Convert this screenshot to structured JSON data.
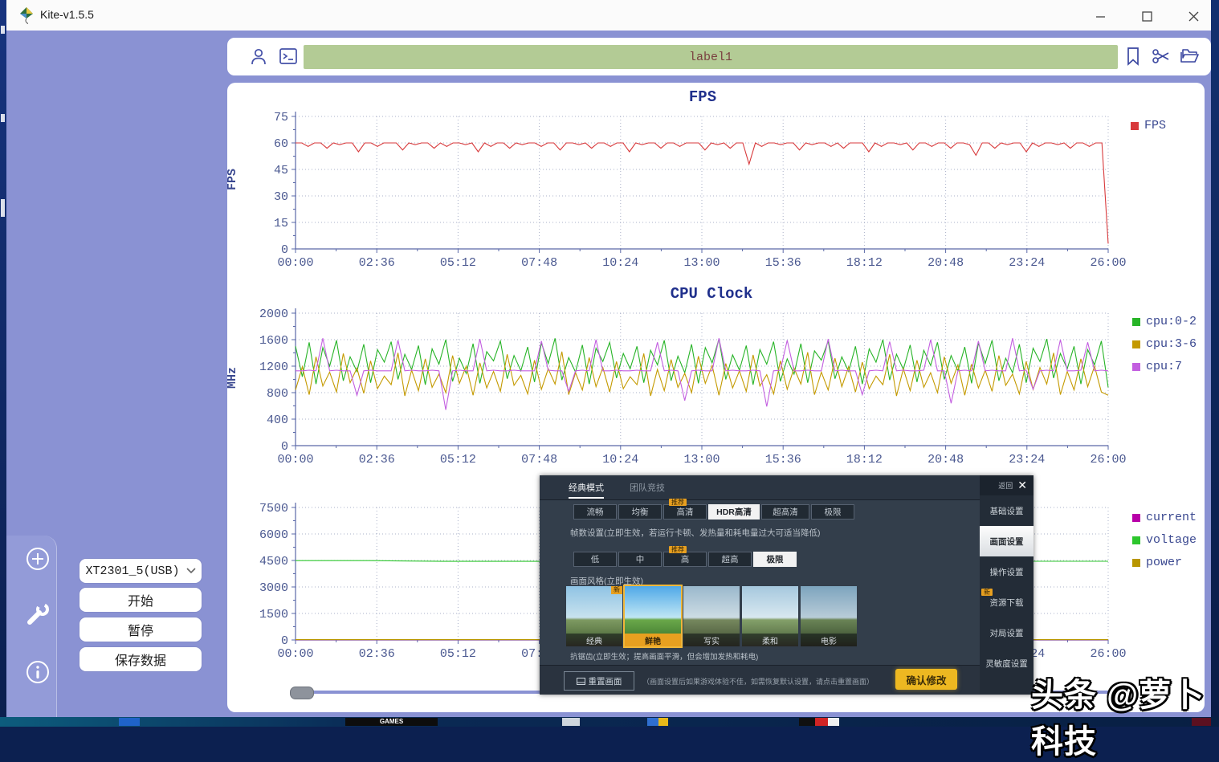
{
  "window": {
    "title": "Kite-v1.5.5"
  },
  "toolbar": {
    "label_value": "label1"
  },
  "sidebar": {
    "device": "XT2301_5(USB)",
    "start_label": "开始",
    "pause_label": "暂停",
    "save_label": "保存数据"
  },
  "chart_data": [
    {
      "type": "line",
      "title": "FPS",
      "ylabel": "FPS",
      "ylim": [
        0,
        75
      ],
      "yticks": [
        0,
        15,
        30,
        45,
        60,
        75
      ],
      "xticks": [
        "00:00",
        "02:36",
        "05:12",
        "07:48",
        "10:24",
        "13:00",
        "15:36",
        "18:12",
        "20:48",
        "23:24",
        "26:00"
      ],
      "grid": true,
      "legend_position": "right",
      "series": [
        {
          "name": "FPS",
          "color": "#d83a3c",
          "values": [
            60,
            60,
            58,
            60,
            60,
            57,
            60,
            59,
            60,
            60,
            55,
            60,
            60,
            58,
            60,
            60,
            60,
            56,
            60,
            59,
            60,
            60,
            57,
            60,
            58,
            60,
            60,
            59,
            60,
            55,
            60,
            58,
            60,
            60,
            57,
            60,
            59,
            60,
            60,
            58,
            60,
            60,
            56,
            60,
            60,
            59,
            60,
            57,
            60,
            60,
            58,
            60,
            60,
            55,
            60,
            59,
            60,
            60,
            57,
            60,
            60,
            58,
            60,
            60,
            60,
            56,
            60,
            59,
            60,
            57,
            60,
            60,
            48,
            60,
            58,
            60,
            60,
            59,
            60,
            60,
            56,
            60,
            59,
            60,
            60,
            58,
            60,
            57,
            60,
            60,
            60,
            55,
            60,
            58,
            60,
            60,
            59,
            60,
            56,
            60,
            60,
            58,
            60,
            60,
            57,
            60,
            60,
            59,
            53,
            60,
            60,
            57,
            60,
            59,
            60,
            60,
            55,
            60,
            58,
            60,
            60,
            59,
            60,
            57,
            60,
            60,
            58,
            60,
            60,
            3
          ]
        }
      ]
    },
    {
      "type": "line",
      "title": "CPU Clock",
      "ylabel": "MHz",
      "ylim": [
        0,
        2000
      ],
      "yticks": [
        0,
        400,
        800,
        1200,
        1600,
        2000
      ],
      "xticks": [
        "00:00",
        "02:36",
        "05:12",
        "07:48",
        "10:24",
        "13:00",
        "15:36",
        "18:12",
        "20:48",
        "23:24",
        "26:00"
      ],
      "grid": true,
      "legend_position": "right",
      "series": [
        {
          "name": "cpu:0-2",
          "color": "#27b427",
          "values": [
            1500,
            1040,
            1560,
            930,
            1480,
            1200,
            1590,
            980,
            1340,
            1120,
            1530,
            950,
            1450,
            1260,
            1570,
            1000,
            1380,
            1150,
            1510,
            920,
            1460,
            1230,
            1600,
            970,
            1320,
            1090,
            1540,
            940,
            1420,
            1280,
            1580,
            1010,
            1360,
            1130,
            1490,
            960,
            1550,
            1240,
            1620,
            990,
            1330,
            1110,
            1520,
            930,
            1470,
            1270,
            1560,
            1020,
            1390,
            1160,
            1500,
            950,
            1440,
            1220,
            1590,
            980,
            1350,
            1100,
            1530,
            940,
            1480,
            1250,
            1610,
            1000,
            1370,
            1140,
            1510,
            920,
            1450,
            1230,
            1570,
            970,
            1310,
            1080,
            1540,
            950,
            1430,
            1290,
            1580,
            1010,
            1340,
            1120,
            1500,
            930,
            1460,
            1260,
            1600,
            990,
            1380,
            1150,
            1520,
            960,
            1440,
            1210,
            1560,
            1000,
            1360,
            1130,
            1490,
            940,
            1550,
            1240,
            1590,
            980,
            1320,
            1100,
            1530,
            950,
            1470,
            1270,
            1610,
            1020,
            1390,
            1160,
            1500,
            930,
            1450,
            1220,
            1580,
            880
          ]
        },
        {
          "name": "cpu:3-6",
          "color": "#c49a00",
          "values": [
            840,
            1190,
            770,
            1340,
            900,
            1110,
            810,
            1390,
            950,
            1170,
            790,
            1280,
            860,
            1050,
            920,
            1400,
            750,
            1140,
            830,
            1310,
            880,
            1080,
            800,
            1360,
            940,
            1200,
            760,
            1250,
            870,
            1120,
            820,
            1380,
            910,
            1060,
            780,
            1290,
            850,
            1160,
            930,
            1420,
            770,
            1100,
            840,
            1330,
            890,
            1180,
            810,
            1270,
            860,
            1040,
            920,
            1390,
            750,
            1150,
            830,
            1300,
            880,
            1090,
            800,
            1350,
            940,
            1210,
            760,
            1240,
            870,
            1130,
            820,
            1370,
            900,
            1070,
            780,
            1280,
            850,
            1170,
            930,
            1410,
            770,
            1110,
            840,
            1320,
            890,
            1190,
            810,
            1260,
            860,
            1050,
            920,
            1380,
            750,
            1160,
            830,
            1290,
            880,
            1100,
            800,
            1340,
            940,
            1220,
            760,
            1230,
            870,
            1140,
            820,
            1360,
            910,
            1080,
            780,
            1270,
            850,
            1180,
            930,
            1400,
            770,
            1120,
            840,
            1310,
            890,
            1200,
            810,
            760
          ]
        },
        {
          "name": "cpu:7",
          "color": "#c35fe0",
          "values": [
            1130,
            1130,
            1140,
            1130,
            1620,
            1130,
            1140,
            1130,
            1130,
            760,
            1130,
            1140,
            1130,
            1130,
            1130,
            1590,
            1130,
            1140,
            1130,
            1130,
            1140,
            1130,
            540,
            1130,
            1140,
            1130,
            1130,
            1610,
            1130,
            1140,
            1130,
            1130,
            1140,
            1130,
            1130,
            1130,
            1580,
            1140,
            1130,
            1130,
            820,
            1130,
            1140,
            1130,
            1600,
            1130,
            1130,
            1140,
            1130,
            1130,
            1140,
            1130,
            1130,
            1560,
            1130,
            1140,
            1130,
            680,
            1130,
            1140,
            1130,
            1130,
            1620,
            1130,
            1140,
            1130,
            1130,
            1140,
            1130,
            590,
            1130,
            1140,
            1590,
            1130,
            1130,
            1140,
            1130,
            1130,
            1610,
            1130,
            1140,
            1130,
            1130,
            770,
            1130,
            1140,
            1130,
            1570,
            1130,
            1140,
            1130,
            1130,
            1140,
            1600,
            1130,
            1130,
            640,
            1130,
            1140,
            1130,
            1580,
            1130,
            1140,
            1130,
            1130,
            1620,
            1130,
            1140,
            850,
            1130,
            1140,
            1130,
            1600,
            1130,
            1130,
            1140,
            1560,
            1130,
            1140,
            1130
          ]
        }
      ]
    },
    {
      "type": "line",
      "title": "",
      "ylabel": "",
      "ylim": [
        0,
        7500
      ],
      "yticks": [
        0,
        1500,
        3000,
        4500,
        6000,
        7500
      ],
      "xticks": [
        "00:00",
        "02:36",
        "05:12",
        "07:48",
        "10:24",
        "13:00",
        "15:36",
        "18:12",
        "20:48",
        "23:24",
        "26:00"
      ],
      "grid": true,
      "legend_position": "right",
      "series": [
        {
          "name": "current",
          "color": "#b800a8",
          "values": [
            15,
            15,
            15,
            15,
            15,
            15,
            15,
            15,
            15,
            15,
            15,
            15
          ]
        },
        {
          "name": "voltage",
          "color": "#2dc62d",
          "values": [
            4490,
            4490,
            4450,
            4450,
            4450,
            4450,
            4450,
            4450,
            4450,
            4450,
            4455,
            4455
          ]
        },
        {
          "name": "power",
          "color": "#b89600",
          "values": [
            20,
            20,
            20,
            20,
            20,
            20,
            20,
            20,
            20,
            20,
            20,
            20
          ]
        }
      ]
    }
  ],
  "overlay": {
    "tabs": [
      "经典模式",
      "团队竞技"
    ],
    "back_label": "返回",
    "quality_options": [
      "流畅",
      "均衡",
      "高清",
      "HDR高清",
      "超高清",
      "极限"
    ],
    "quality_selected": "HDR高清",
    "quality_badge": "推荐",
    "fps_note": "帧数设置(立即生效，若运行卡顿、发热量和耗电量过大可适当降低)",
    "fps_options": [
      "低",
      "中",
      "高",
      "超高",
      "极限"
    ],
    "fps_selected": "极限",
    "fps_badge": "推荐",
    "style_label": "画面风格(立即生效)",
    "styles": [
      "经典",
      "鲜艳",
      "写实",
      "柔和",
      "电影"
    ],
    "style_selected": "鲜艳",
    "style_badge": "新",
    "aa_note": "抗锯齿(立即生效；提高画面平滑，但会增加发热和耗电)",
    "reset_button": "重置画面",
    "reset_note": "（画面设置后如果游戏体验不佳，如需恢复默认设置，请点击重置画面）",
    "confirm_button": "确认修改",
    "menu": [
      "基础设置",
      "画面设置",
      "操作设置",
      "资源下载",
      "对局设置",
      "灵敏度设置"
    ],
    "menu_selected": "画面设置",
    "menu_badge": "新"
  },
  "watermark": "头条 @萝卜科技",
  "taskbar": {
    "games_label": "GAMES"
  },
  "colors": {
    "app_background": "#8a92d3",
    "input_green": "#b3cb95",
    "fps_line": "#d83a3c",
    "cpu_0_2": "#27b427",
    "cpu_3_6": "#c49a00",
    "cpu_7": "#c35fe0",
    "current": "#b800a8",
    "voltage": "#2dc62d",
    "power": "#b89600",
    "confirm_yellow": "#edb821"
  }
}
